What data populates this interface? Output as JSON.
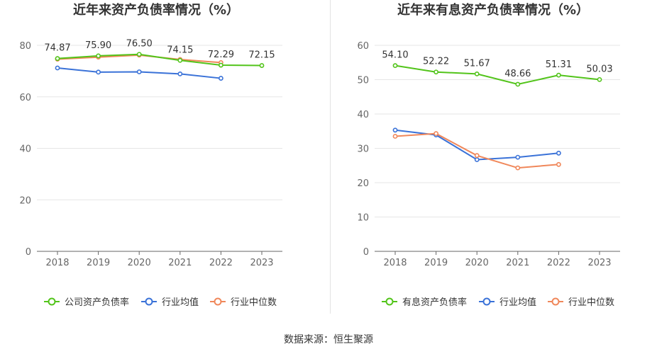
{
  "source": "数据来源：恒生聚源",
  "colors": {
    "company": "#52c41a",
    "avg": "#3a72d8",
    "median": "#f0875a"
  },
  "chart_data": [
    {
      "type": "line",
      "title": "近年来资产负债率情况（%）",
      "x": [
        "2018",
        "2019",
        "2020",
        "2021",
        "2022",
        "2023"
      ],
      "ylim": [
        0,
        80
      ],
      "yticks": [
        0,
        20,
        40,
        60,
        80
      ],
      "grid": true,
      "legend": "bottom",
      "series": [
        {
          "name": "公司资产负债率",
          "key": "company",
          "values": [
            74.87,
            75.9,
            76.5,
            74.15,
            72.29,
            72.15
          ],
          "labels": [
            "74.87",
            "75.90",
            "76.50",
            "74.15",
            "72.29",
            "72.15"
          ]
        },
        {
          "name": "行业均值",
          "key": "avg",
          "values": [
            71.2,
            69.6,
            69.7,
            68.9,
            67.2,
            null
          ]
        },
        {
          "name": "行业中位数",
          "key": "median",
          "values": [
            74.6,
            75.4,
            76.2,
            74.5,
            73.3,
            null
          ]
        }
      ]
    },
    {
      "type": "line",
      "title": "近年来有息资产负债率情况（%）",
      "x": [
        "2018",
        "2019",
        "2020",
        "2021",
        "2022",
        "2023"
      ],
      "ylim": [
        0,
        60
      ],
      "yticks": [
        0,
        10,
        20,
        30,
        40,
        50,
        60
      ],
      "grid": true,
      "legend": "bottom",
      "series": [
        {
          "name": "有息资产负债率",
          "key": "company",
          "values": [
            54.1,
            52.22,
            51.67,
            48.66,
            51.31,
            50.03
          ],
          "labels": [
            "54.10",
            "52.22",
            "51.67",
            "48.66",
            "51.31",
            "50.03"
          ]
        },
        {
          "name": "行业均值",
          "key": "avg",
          "values": [
            35.3,
            33.9,
            26.7,
            27.4,
            28.6,
            null
          ]
        },
        {
          "name": "行业中位数",
          "key": "median",
          "values": [
            33.5,
            34.3,
            27.9,
            24.3,
            25.3,
            null
          ]
        }
      ]
    }
  ]
}
